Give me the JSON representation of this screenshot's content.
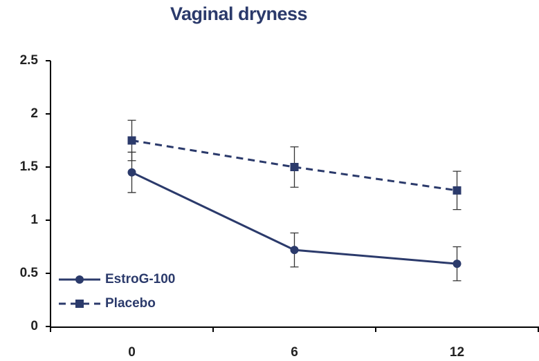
{
  "chart_data": {
    "type": "line",
    "title": "Vaginal dryness",
    "categories": [
      "0",
      "6",
      "12"
    ],
    "series": [
      {
        "name": "EstroG-100",
        "color": "#2b3a6b",
        "dash": false,
        "marker": "circle",
        "values": [
          1.45,
          0.72,
          0.59
        ],
        "errors": [
          0.19,
          0.16,
          0.16
        ]
      },
      {
        "name": "Placebo",
        "color": "#2b3a6b",
        "dash": true,
        "marker": "square",
        "values": [
          1.75,
          1.5,
          1.28
        ],
        "errors": [
          0.19,
          0.19,
          0.18
        ]
      }
    ],
    "ylim": [
      0,
      2.5
    ],
    "yticks": [
      0,
      0.5,
      1,
      1.5,
      2,
      2.5
    ],
    "grid": false,
    "legend": "lower left"
  }
}
